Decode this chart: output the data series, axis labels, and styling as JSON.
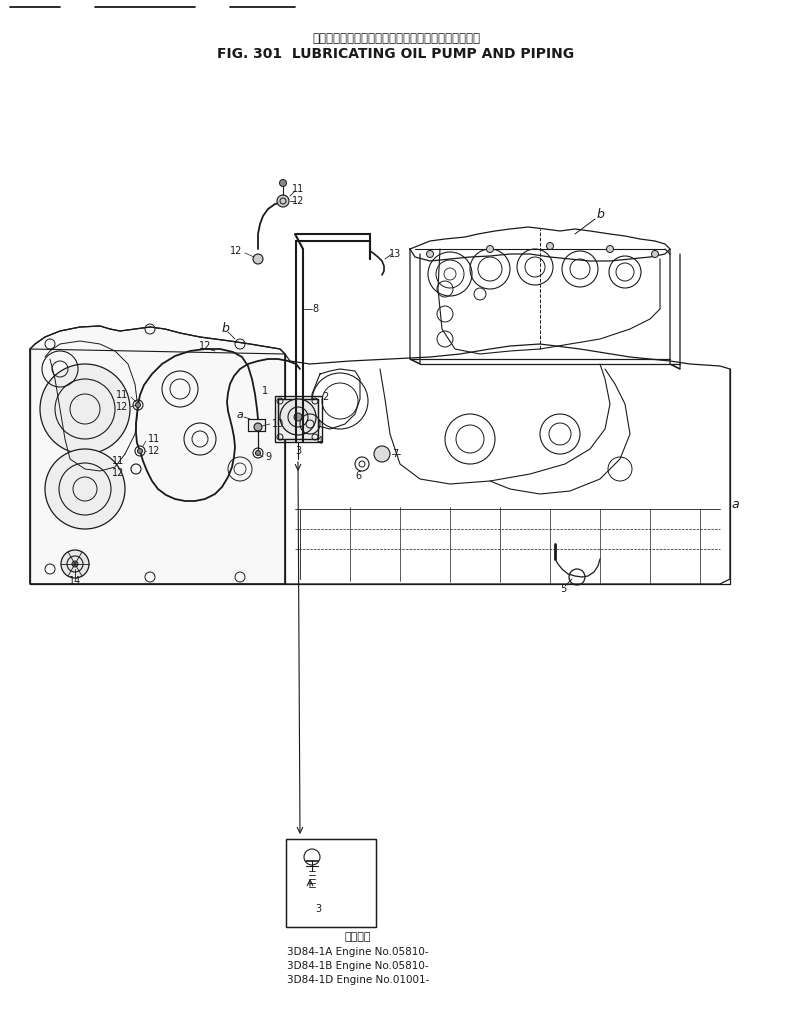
{
  "title_japanese": "ルーブリケーティングオイルポンプおよびパイピング",
  "title_english": "FIG. 301  LUBRICATING OIL PUMP AND PIPING",
  "footer_lines": [
    "適用号機",
    "3D84-1A Engine No.05810-",
    "3D84-1B Engine No.05810-",
    "3D84-1D Engine No.01001-"
  ],
  "bg_color": "#ffffff",
  "dc": "#1a1a1a",
  "fig_width": 7.93,
  "fig_height": 10.09,
  "dpi": 100
}
